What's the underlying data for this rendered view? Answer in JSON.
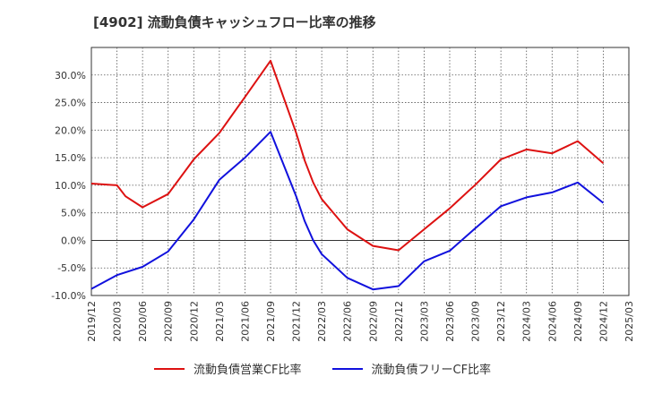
{
  "chart_data": {
    "type": "line",
    "title": "[4902]  流動負債キャッシュフロー比率の推移",
    "xlabel": "",
    "ylabel": "",
    "ylim": [
      -10,
      35
    ],
    "yticks": [
      -10,
      -5,
      0,
      5,
      10,
      15,
      20,
      25,
      30
    ],
    "ytick_labels": [
      "-10.0%",
      "-5.0%",
      "0.0%",
      "5.0%",
      "10.0%",
      "15.0%",
      "20.0%",
      "25.0%",
      "30.0%"
    ],
    "x_ticks": [
      "2019/12",
      "2020/03",
      "2020/06",
      "2020/09",
      "2020/12",
      "2021/03",
      "2021/06",
      "2021/09",
      "2021/12",
      "2022/03",
      "2022/06",
      "2022/09",
      "2022/12",
      "2023/03",
      "2023/06",
      "2023/09",
      "2023/12",
      "2024/03",
      "2024/06",
      "2024/09",
      "2024/12",
      "2025/03"
    ],
    "grid": true,
    "legend_position": "bottom",
    "series": [
      {
        "name": "流動負債営業CF比率",
        "color": "#dd1111",
        "points": [
          [
            "2019/12",
            10.3
          ],
          [
            "2020/03",
            10.0
          ],
          [
            "2020/04",
            8.0
          ],
          [
            "2020/06",
            6.0
          ],
          [
            "2020/09",
            8.4
          ],
          [
            "2020/12",
            14.7
          ],
          [
            "2021/03",
            19.5
          ],
          [
            "2021/06",
            26.0
          ],
          [
            "2021/09",
            32.6
          ],
          [
            "2021/12",
            19.5
          ],
          [
            "2022/01",
            14.5
          ],
          [
            "2022/02",
            10.5
          ],
          [
            "2022/03",
            7.5
          ],
          [
            "2022/06",
            2.0
          ],
          [
            "2022/09",
            -1.0
          ],
          [
            "2022/12",
            -1.8
          ],
          [
            "2023/03",
            2.0
          ],
          [
            "2023/06",
            5.8
          ],
          [
            "2023/09",
            10.1
          ],
          [
            "2023/12",
            14.7
          ],
          [
            "2024/03",
            16.5
          ],
          [
            "2024/06",
            15.8
          ],
          [
            "2024/09",
            18.0
          ],
          [
            "2024/12",
            14.0
          ]
        ]
      },
      {
        "name": "流動負債フリーCF比率",
        "color": "#1111dd",
        "points": [
          [
            "2019/12",
            -8.8
          ],
          [
            "2020/03",
            -6.3
          ],
          [
            "2020/06",
            -4.8
          ],
          [
            "2020/09",
            -2.0
          ],
          [
            "2020/12",
            3.8
          ],
          [
            "2021/03",
            11.0
          ],
          [
            "2021/06",
            15.0
          ],
          [
            "2021/09",
            19.7
          ],
          [
            "2021/12",
            8.0
          ],
          [
            "2022/01",
            3.5
          ],
          [
            "2022/02",
            0.0
          ],
          [
            "2022/03",
            -2.5
          ],
          [
            "2022/06",
            -6.8
          ],
          [
            "2022/09",
            -8.9
          ],
          [
            "2022/12",
            -8.3
          ],
          [
            "2023/03",
            -3.8
          ],
          [
            "2023/06",
            -1.9
          ],
          [
            "2023/09",
            2.2
          ],
          [
            "2023/12",
            6.2
          ],
          [
            "2024/03",
            7.8
          ],
          [
            "2024/06",
            8.7
          ],
          [
            "2024/09",
            10.5
          ],
          [
            "2024/12",
            6.8
          ]
        ]
      }
    ]
  }
}
